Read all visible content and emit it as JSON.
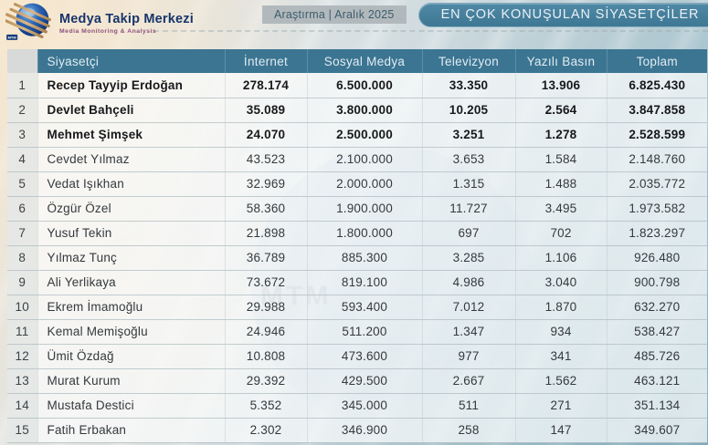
{
  "brand": {
    "name": "Medya Takip Merkezi",
    "tagline": "Media Monitoring & Analysis",
    "logo_text": "MTM"
  },
  "header": {
    "badge": "Araştırma | Aralık 2025",
    "title": "EN ÇOK KONUŞULAN SİYASETÇİLER"
  },
  "colors": {
    "header_teal": "#3b7592",
    "pill_teal": "#4f89a6",
    "badge_bg": "#b2b9bd",
    "badge_text": "#3d5d6b",
    "brand_navy": "#17356b"
  },
  "table": {
    "columns": [
      "Siyasetçi",
      "İnternet",
      "Sosyal Medya",
      "Televizyon",
      "Yazılı Basın",
      "Toplam"
    ],
    "rows": [
      {
        "rank": "1",
        "name": "Recep Tayyip Erdoğan",
        "internet": "278.174",
        "sosyal_medya": "6.500.000",
        "televizyon": "33.350",
        "yazili_basin": "13.906",
        "toplam": "6.825.430",
        "bold": true
      },
      {
        "rank": "2",
        "name": "Devlet Bahçeli",
        "internet": "35.089",
        "sosyal_medya": "3.800.000",
        "televizyon": "10.205",
        "yazili_basin": "2.564",
        "toplam": "3.847.858",
        "bold": true
      },
      {
        "rank": "3",
        "name": "Mehmet Şimşek",
        "internet": "24.070",
        "sosyal_medya": "2.500.000",
        "televizyon": "3.251",
        "yazili_basin": "1.278",
        "toplam": "2.528.599",
        "bold": true
      },
      {
        "rank": "4",
        "name": "Cevdet Yılmaz",
        "internet": "43.523",
        "sosyal_medya": "2.100.000",
        "televizyon": "3.653",
        "yazili_basin": "1.584",
        "toplam": "2.148.760",
        "bold": false
      },
      {
        "rank": "5",
        "name": "Vedat Işıkhan",
        "internet": "32.969",
        "sosyal_medya": "2.000.000",
        "televizyon": "1.315",
        "yazili_basin": "1.488",
        "toplam": "2.035.772",
        "bold": false
      },
      {
        "rank": "6",
        "name": "Özgür Özel",
        "internet": "58.360",
        "sosyal_medya": "1.900.000",
        "televizyon": "11.727",
        "yazili_basin": "3.495",
        "toplam": "1.973.582",
        "bold": false
      },
      {
        "rank": "7",
        "name": "Yusuf Tekin",
        "internet": "21.898",
        "sosyal_medya": "1.800.000",
        "televizyon": "697",
        "yazili_basin": "702",
        "toplam": "1.823.297",
        "bold": false
      },
      {
        "rank": "8",
        "name": "Yılmaz Tunç",
        "internet": "36.789",
        "sosyal_medya": "885.300",
        "televizyon": "3.285",
        "yazili_basin": "1.106",
        "toplam": "926.480",
        "bold": false
      },
      {
        "rank": "9",
        "name": "Ali Yerlikaya",
        "internet": "73.672",
        "sosyal_medya": "819.100",
        "televizyon": "4.986",
        "yazili_basin": "3.040",
        "toplam": "900.798",
        "bold": false
      },
      {
        "rank": "10",
        "name": "Ekrem İmamoğlu",
        "internet": "29.988",
        "sosyal_medya": "593.400",
        "televizyon": "7.012",
        "yazili_basin": "1.870",
        "toplam": "632.270",
        "bold": false
      },
      {
        "rank": "11",
        "name": "Kemal Memişoğlu",
        "internet": "24.946",
        "sosyal_medya": "511.200",
        "televizyon": "1.347",
        "yazili_basin": "934",
        "toplam": "538.427",
        "bold": false
      },
      {
        "rank": "12",
        "name": "Ümit Özdağ",
        "internet": "10.808",
        "sosyal_medya": "473.600",
        "televizyon": "977",
        "yazili_basin": "341",
        "toplam": "485.726",
        "bold": false
      },
      {
        "rank": "13",
        "name": "Murat Kurum",
        "internet": "29.392",
        "sosyal_medya": "429.500",
        "televizyon": "2.667",
        "yazili_basin": "1.562",
        "toplam": "463.121",
        "bold": false
      },
      {
        "rank": "14",
        "name": "Mustafa Destici",
        "internet": "5.352",
        "sosyal_medya": "345.000",
        "televizyon": "511",
        "yazili_basin": "271",
        "toplam": "351.134",
        "bold": false
      },
      {
        "rank": "15",
        "name": "Fatih Erbakan",
        "internet": "2.302",
        "sosyal_medya": "346.900",
        "televizyon": "258",
        "yazili_basin": "147",
        "toplam": "349.607",
        "bold": false
      }
    ]
  }
}
